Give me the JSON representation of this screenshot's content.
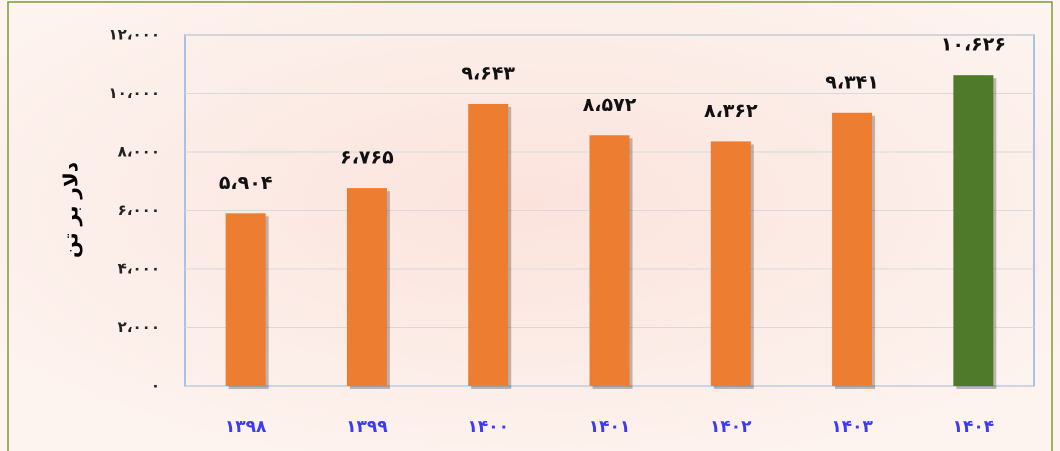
{
  "chart_data": {
    "type": "bar",
    "y_label": "دلار بر تن",
    "categories": [
      "۱۳۹۸",
      "۱۳۹۹",
      "۱۴۰۰",
      "۱۴۰۱",
      "۱۴۰۲",
      "۱۴۰۳",
      "۱۴۰۴"
    ],
    "values": [
      5904,
      6765,
      9643,
      8572,
      8362,
      9341,
      10626
    ],
    "value_labels": [
      "۵،۹۰۴",
      "۶،۷۶۵",
      "۹،۶۴۳",
      "۸،۵۷۲",
      "۸،۳۶۲",
      "۹،۳۴۱",
      "۱۰،۶۲۶"
    ],
    "colors": [
      "#ed7d31",
      "#ed7d31",
      "#ed7d31",
      "#ed7d31",
      "#ed7d31",
      "#ed7d31",
      "#4f7a2a"
    ],
    "ylim": [
      0,
      12000
    ],
    "yticks": [
      {
        "value": 0,
        "label": "۰"
      },
      {
        "value": 2000,
        "label": "۲،۰۰۰"
      },
      {
        "value": 4000,
        "label": "۴،۰۰۰"
      },
      {
        "value": 6000,
        "label": "۶،۰۰۰"
      },
      {
        "value": 8000,
        "label": "۸،۰۰۰"
      },
      {
        "value": 10000,
        "label": "۱۰،۰۰۰"
      },
      {
        "value": 12000,
        "label": "۱۲،۰۰۰"
      }
    ],
    "grid": true
  }
}
